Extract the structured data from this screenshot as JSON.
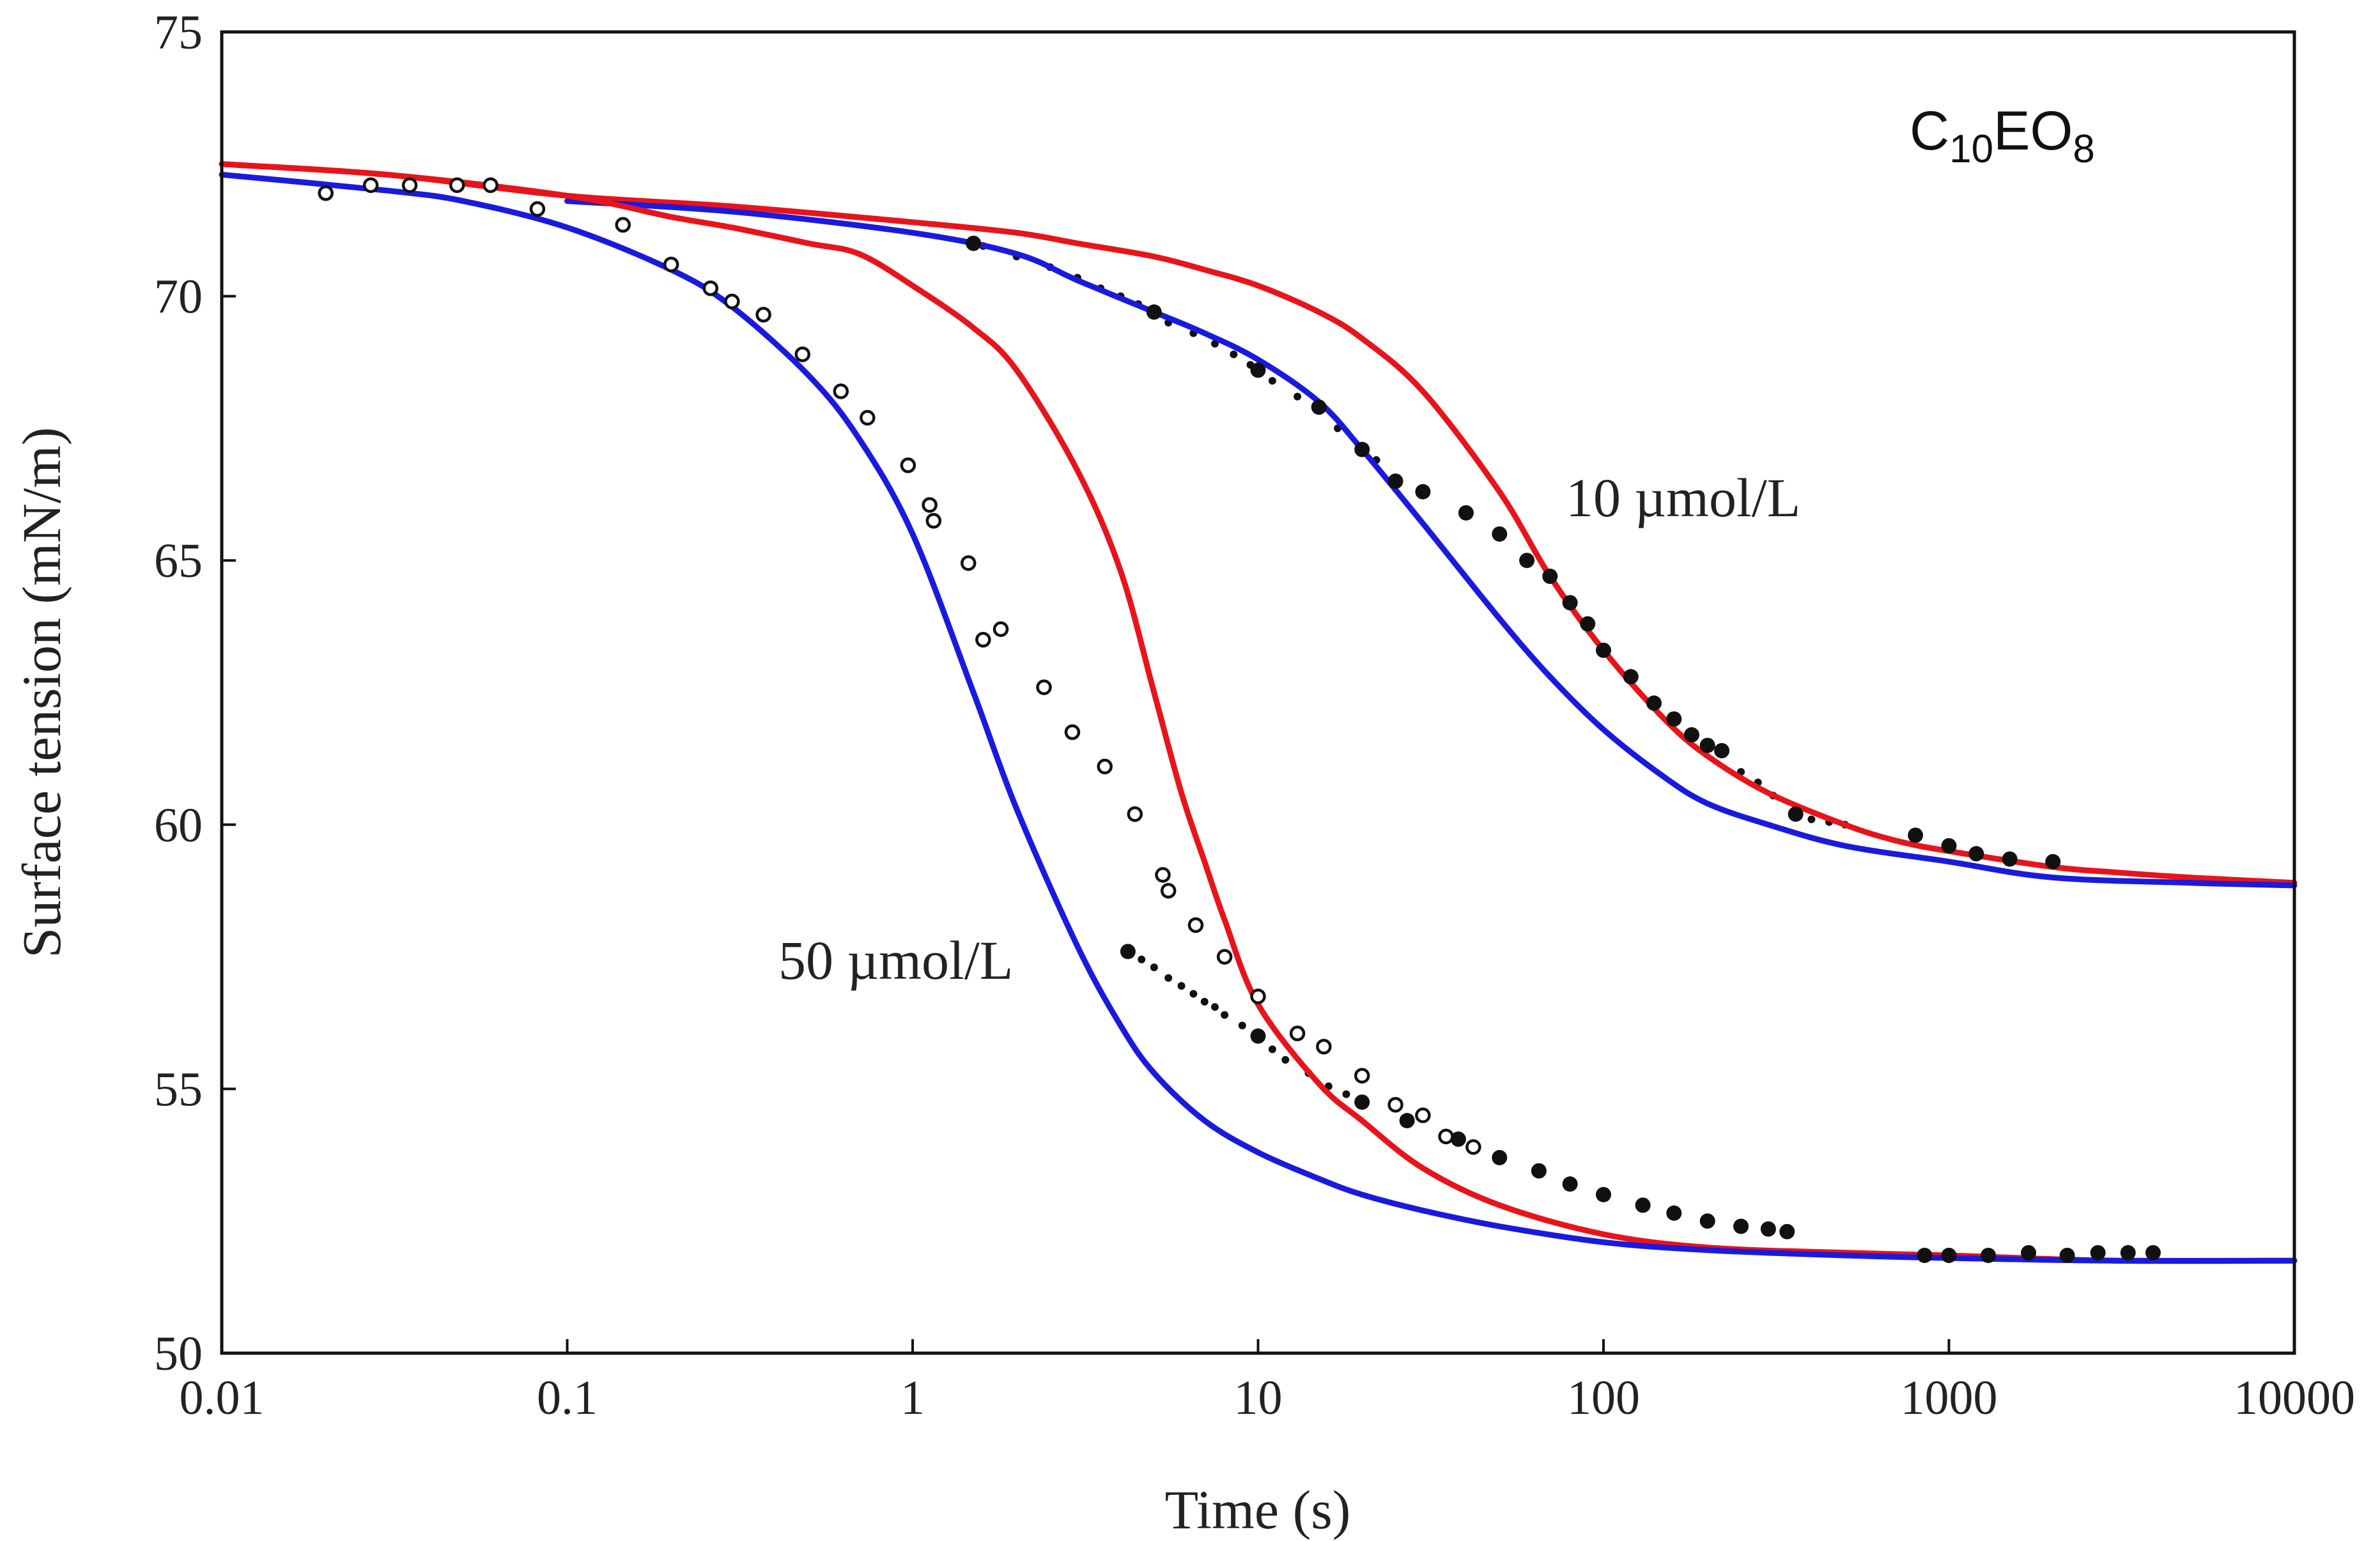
{
  "chart_data": {
    "type": "scatter",
    "title": "",
    "compound": {
      "base": "C",
      "sub1": "10",
      "mid": "EO",
      "sub2": "8"
    },
    "xlabel": "Time (s)",
    "ylabel": "Surface tension (mN/m)",
    "xscale": "log",
    "xlim": [
      0.01,
      10000
    ],
    "ylim": [
      50,
      75
    ],
    "xticks": [
      0.01,
      0.1,
      1,
      10,
      100,
      1000,
      10000
    ],
    "xtick_labels": [
      "0.01",
      "0.1",
      "1",
      "10",
      "100",
      "1000",
      "10000"
    ],
    "yticks": [
      50,
      55,
      60,
      65,
      70,
      75
    ],
    "ytick_labels": [
      "50",
      "55",
      "60",
      "65",
      "70",
      "75"
    ],
    "annotations": [
      {
        "text": "10 µmol/L",
        "x": 80,
        "y": 66.4
      },
      {
        "text": "50 µmol/L",
        "x": 1.2,
        "y": 57.3
      }
    ],
    "colors": {
      "red": "#e8141b",
      "blue": "#1a1adf",
      "black": "#111111"
    },
    "series": [
      {
        "name": "10 µmol/L model (red)",
        "kind": "line",
        "color": "#e8141b",
        "x": [
          0.01,
          0.03,
          0.1,
          0.3,
          1,
          2,
          3,
          5,
          7,
          10,
          15,
          20,
          30,
          50,
          70,
          100,
          150,
          200,
          300,
          500,
          700,
          1000,
          2000,
          3000,
          5000,
          10000
        ],
        "y": [
          72.5,
          72.3,
          71.9,
          71.7,
          71.4,
          71.2,
          71.0,
          70.75,
          70.5,
          70.2,
          69.7,
          69.2,
          68.2,
          66.3,
          64.7,
          63.3,
          62.0,
          61.3,
          60.6,
          60.0,
          59.7,
          59.5,
          59.2,
          59.1,
          59.0,
          58.9
        ]
      },
      {
        "name": "10 µmol/L model (blue)",
        "kind": "line",
        "color": "#1a1adf",
        "x": [
          0.1,
          0.3,
          1,
          2,
          3,
          5,
          7,
          10,
          15,
          20,
          30,
          50,
          70,
          100,
          150,
          200,
          300,
          500,
          1000,
          2000,
          5000,
          10000
        ],
        "y": [
          71.8,
          71.6,
          71.2,
          70.8,
          70.3,
          69.7,
          69.3,
          68.8,
          68.0,
          67.1,
          65.7,
          63.9,
          62.8,
          61.8,
          60.9,
          60.4,
          60.0,
          59.6,
          59.3,
          59.0,
          58.9,
          58.85
        ]
      },
      {
        "name": "50 µmol/L model (red)",
        "kind": "line",
        "color": "#e8141b",
        "x": [
          0.01,
          0.03,
          0.1,
          0.2,
          0.3,
          0.5,
          0.7,
          1,
          1.5,
          2,
          3,
          4,
          5,
          6,
          7,
          8,
          10,
          15,
          20,
          30,
          50,
          100,
          200,
          500,
          1000,
          3000,
          10000
        ],
        "y": [
          72.5,
          72.3,
          71.9,
          71.5,
          71.3,
          71.0,
          70.8,
          70.2,
          69.4,
          68.6,
          66.7,
          64.8,
          62.5,
          60.6,
          59.3,
          58.2,
          56.6,
          55.1,
          54.4,
          53.5,
          52.8,
          52.25,
          52.0,
          51.9,
          51.85,
          51.75,
          51.75
        ]
      },
      {
        "name": "50 µmol/L model (blue)",
        "kind": "line",
        "color": "#1a1adf",
        "x": [
          0.01,
          0.03,
          0.05,
          0.1,
          0.2,
          0.3,
          0.5,
          0.7,
          1,
          1.5,
          2,
          3,
          4,
          5,
          7,
          10,
          15,
          20,
          30,
          50,
          100,
          200,
          500,
          1000,
          3000,
          10000
        ],
        "y": [
          72.3,
          72.0,
          71.8,
          71.3,
          70.5,
          69.8,
          68.5,
          67.3,
          65.5,
          62.5,
          60.3,
          57.7,
          56.2,
          55.3,
          54.4,
          53.8,
          53.3,
          53.0,
          52.7,
          52.4,
          52.1,
          51.95,
          51.85,
          51.8,
          51.75,
          51.75
        ]
      },
      {
        "name": "50 µmol/L data (open circles)",
        "kind": "open-marker",
        "color": "#111111",
        "x": [
          0.02,
          0.027,
          0.035,
          0.048,
          0.06,
          0.082,
          0.145,
          0.2,
          0.26,
          0.3,
          0.37,
          0.48,
          0.62,
          0.74,
          0.97,
          1.12,
          1.15,
          1.45,
          1.6,
          1.8,
          2.4,
          2.9,
          3.6,
          4.4,
          5.3,
          5.5,
          6.6,
          8.0,
          10.0,
          13.0,
          15.5,
          20.0,
          25.0,
          30.0,
          35.0,
          42.0
        ],
        "y": [
          71.95,
          72.1,
          72.1,
          72.1,
          72.1,
          71.65,
          71.35,
          70.6,
          70.15,
          69.9,
          69.65,
          68.9,
          68.2,
          67.7,
          66.8,
          66.05,
          65.75,
          64.95,
          63.5,
          63.7,
          62.6,
          61.75,
          61.1,
          60.2,
          59.05,
          58.75,
          58.1,
          57.5,
          56.75,
          56.05,
          55.8,
          55.25,
          54.7,
          54.5,
          54.1,
          53.9
        ]
      },
      {
        "name": "10 µmol/L data (filled circles)",
        "kind": "filled-marker",
        "color": "#111111",
        "x": [
          1.5,
          5.0,
          10.0,
          15.0,
          20.0,
          25.0,
          30.0,
          40.0,
          50.0,
          60.0,
          70.0,
          80.0,
          90.0,
          100.0,
          120.0,
          140.0,
          160.0,
          180.0,
          200.0,
          220.0,
          360.0,
          800.0,
          1000.0,
          1200.0,
          1500.0,
          2000.0
        ],
        "y": [
          71.0,
          69.7,
          68.6,
          67.9,
          67.1,
          66.5,
          66.3,
          65.9,
          65.5,
          65.0,
          64.7,
          64.2,
          63.8,
          63.3,
          62.8,
          62.3,
          62.0,
          61.7,
          61.5,
          61.4,
          60.2,
          59.8,
          59.6,
          59.45,
          59.35,
          59.3
        ]
      },
      {
        "name": "50 µmol/L data (filled circles)",
        "kind": "filled-marker",
        "color": "#111111",
        "x": [
          4.2,
          10.0,
          20.0,
          27.0,
          38.0,
          50.0,
          65.0,
          80.0,
          100.0,
          130.0,
          160.0,
          200.0,
          250.0,
          300.0,
          340.0,
          850.0,
          1000.0,
          1300.0,
          1700.0,
          2200.0,
          2700.0,
          3300.0,
          3900.0
        ],
        "y": [
          57.6,
          56.0,
          54.75,
          54.4,
          54.05,
          53.7,
          53.45,
          53.2,
          53.0,
          52.8,
          52.65,
          52.5,
          52.4,
          52.35,
          52.3,
          51.85,
          51.85,
          51.85,
          51.9,
          51.85,
          51.9,
          51.9,
          51.9
        ]
      },
      {
        "name": "10 µmol/L dotted data (small points)",
        "kind": "dotted",
        "color": "#111111",
        "x": [
          1.6,
          2.0,
          2.5,
          3.0,
          3.5,
          4.0,
          4.5,
          5.5,
          6.5,
          7.5,
          8.5,
          9.5,
          11.0,
          13.0,
          17.0,
          22.0,
          250.0,
          280.0,
          310.0,
          400.0,
          450.0,
          500.0
        ],
        "y": [
          70.95,
          70.75,
          70.55,
          70.35,
          70.15,
          70.0,
          69.85,
          69.5,
          69.3,
          69.1,
          68.9,
          68.7,
          68.4,
          68.1,
          67.5,
          66.9,
          61.0,
          60.8,
          60.55,
          60.1,
          60.05,
          60.0
        ]
      },
      {
        "name": "50 µmol/L dotted data (small points)",
        "kind": "dotted",
        "color": "#111111",
        "x": [
          4.6,
          5.0,
          5.5,
          6.0,
          6.5,
          7.0,
          7.5,
          8.0,
          9.0,
          11.0,
          12.0,
          14.0,
          16.0,
          18.0
        ],
        "y": [
          57.45,
          57.3,
          57.1,
          56.95,
          56.8,
          56.65,
          56.55,
          56.4,
          56.2,
          55.75,
          55.55,
          55.3,
          55.05,
          54.9
        ]
      }
    ]
  }
}
